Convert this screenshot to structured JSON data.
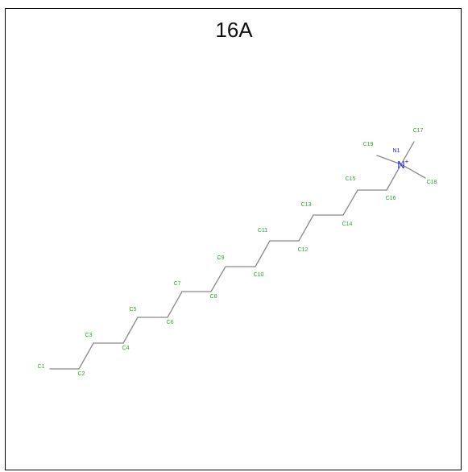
{
  "title": "16A",
  "colors": {
    "bond": "#8a8a8a",
    "carbon_label": "#2ea82e",
    "nitrogen_label": "#1f1fe0",
    "frame": "#000000",
    "title": "#111111"
  },
  "atoms": [
    {
      "id": "C1",
      "label": "C1",
      "element": "C"
    },
    {
      "id": "C2",
      "label": "C2",
      "element": "C"
    },
    {
      "id": "C3",
      "label": "C3",
      "element": "C"
    },
    {
      "id": "C4",
      "label": "C4",
      "element": "C"
    },
    {
      "id": "C5",
      "label": "C5",
      "element": "C"
    },
    {
      "id": "C6",
      "label": "C6",
      "element": "C"
    },
    {
      "id": "C7",
      "label": "C7",
      "element": "C"
    },
    {
      "id": "C8",
      "label": "C8",
      "element": "C"
    },
    {
      "id": "C9",
      "label": "C9",
      "element": "C"
    },
    {
      "id": "C10",
      "label": "C10",
      "element": "C"
    },
    {
      "id": "C11",
      "label": "C11",
      "element": "C"
    },
    {
      "id": "C12",
      "label": "C12",
      "element": "C"
    },
    {
      "id": "C13",
      "label": "C13",
      "element": "C"
    },
    {
      "id": "C14",
      "label": "C14",
      "element": "C"
    },
    {
      "id": "C15",
      "label": "C15",
      "element": "C"
    },
    {
      "id": "C16",
      "label": "C16",
      "element": "C"
    },
    {
      "id": "N1",
      "label": "N1",
      "element": "N",
      "symbol": "N",
      "charge": "+"
    },
    {
      "id": "C17",
      "label": "C17",
      "element": "C"
    },
    {
      "id": "C18",
      "label": "C18",
      "element": "C"
    },
    {
      "id": "C19",
      "label": "C19",
      "element": "C"
    }
  ],
  "bonds": [
    [
      "C1",
      "C2"
    ],
    [
      "C2",
      "C3"
    ],
    [
      "C3",
      "C4"
    ],
    [
      "C4",
      "C5"
    ],
    [
      "C5",
      "C6"
    ],
    [
      "C6",
      "C7"
    ],
    [
      "C7",
      "C8"
    ],
    [
      "C8",
      "C9"
    ],
    [
      "C9",
      "C10"
    ],
    [
      "C10",
      "C11"
    ],
    [
      "C11",
      "C12"
    ],
    [
      "C12",
      "C13"
    ],
    [
      "C13",
      "C14"
    ],
    [
      "C14",
      "C15"
    ],
    [
      "C15",
      "C16"
    ],
    [
      "C16",
      "N1"
    ],
    [
      "N1",
      "C17"
    ],
    [
      "N1",
      "C18"
    ],
    [
      "N1",
      "C19"
    ]
  ]
}
